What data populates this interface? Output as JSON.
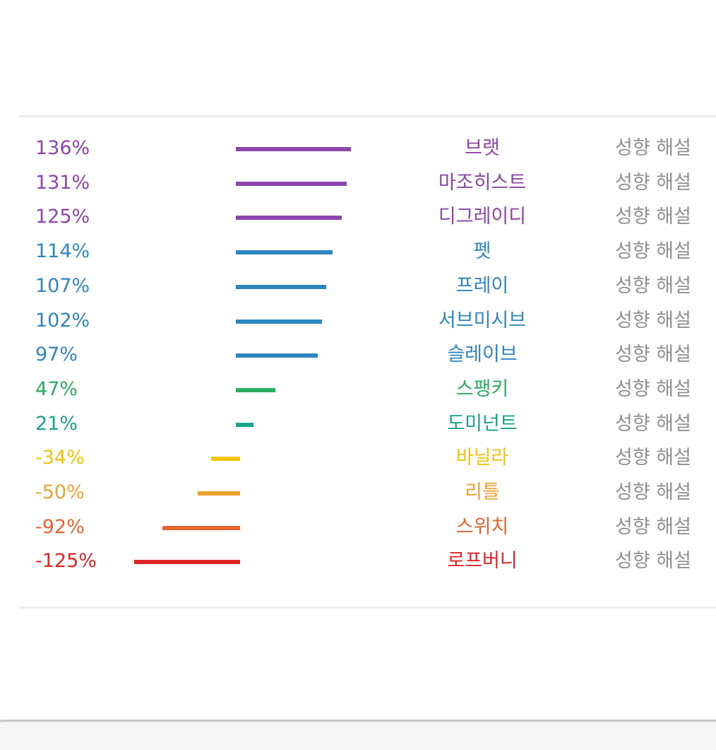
{
  "chart_data": {
    "type": "bar",
    "orientation": "horizontal",
    "categories": [
      "브랫",
      "마조히스트",
      "디그레이디",
      "펫",
      "프레이",
      "서브미시브",
      "슬레이브",
      "스팽키",
      "도미넌트",
      "바닐라",
      "리틀",
      "스위치",
      "로프버니"
    ],
    "value_labels": [
      "136%",
      "131%",
      "125%",
      "114%",
      "107%",
      "102%",
      "97%",
      "47%",
      "21%",
      "-34%",
      "-50%",
      "-92%",
      "-125%"
    ],
    "values": [
      136,
      131,
      125,
      114,
      107,
      102,
      97,
      47,
      21,
      -34,
      -50,
      -92,
      -125
    ],
    "colors": [
      "#8e44ad",
      "#8e44ad",
      "#8e44ad",
      "#2e86c1",
      "#2e86c1",
      "#2e86c1",
      "#2e86c1",
      "#27ae60",
      "#17a589",
      "#f4c20d",
      "#f0a030",
      "#e8632b",
      "#e02424"
    ],
    "link_label": "성향 해설",
    "grid": false,
    "legend": "none"
  }
}
